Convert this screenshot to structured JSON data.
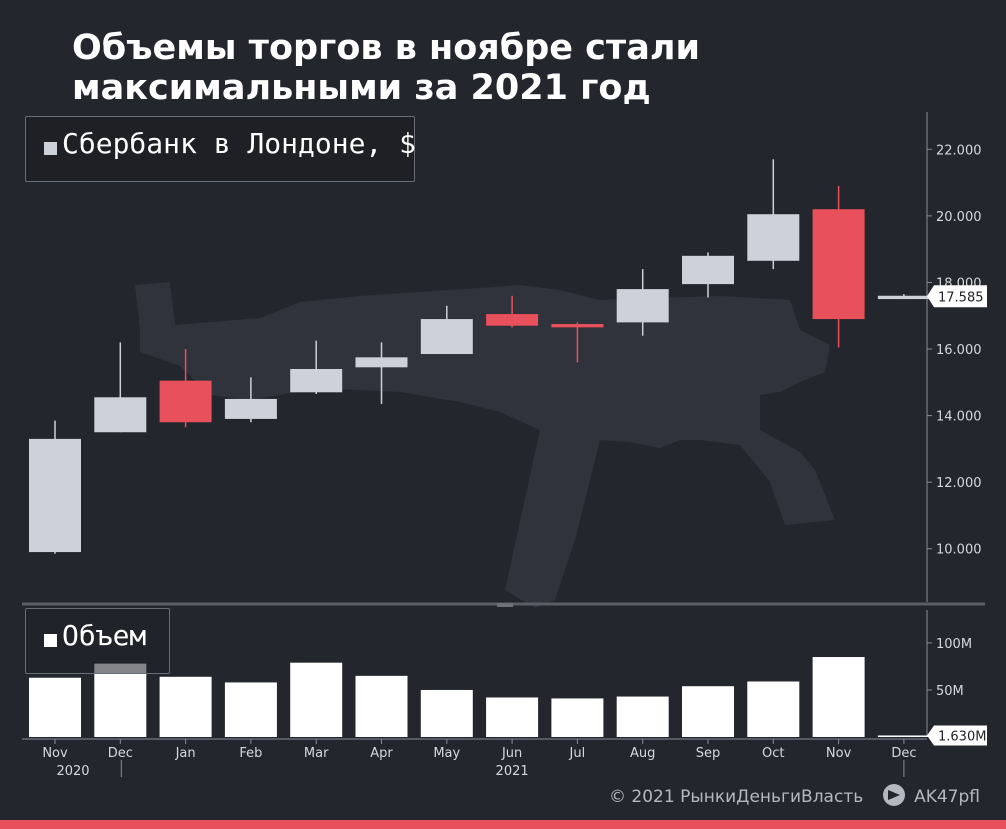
{
  "title": "Объемы торгов в ноябре стали максимальными за 2021 год",
  "legend_price": "Сбербанк в Лондоне, $",
  "legend_volume": "Объем",
  "footer": {
    "copyright": "© 2021  РынкиДеньгиВласть",
    "telegram": "AK47pfl"
  },
  "colors": {
    "up": "#cdd1da",
    "down": "#e8505b",
    "volume": "#ffffff",
    "background": "#24262e",
    "accent_bar": "#e8505b"
  },
  "chart_data": {
    "type": "candlestick",
    "categories": [
      "Nov",
      "Dec",
      "Jan",
      "Feb",
      "Mar",
      "Apr",
      "May",
      "Jun",
      "Jul",
      "Aug",
      "Sep",
      "Oct",
      "Nov",
      "Dec"
    ],
    "year_labels": {
      "0": "2020",
      "7": "2021"
    },
    "price": {
      "name": "Сбербанк в Лондоне, $",
      "ylim": [
        8.4,
        23.0
      ],
      "ticks": [
        10,
        12,
        14,
        16,
        18,
        20,
        22
      ],
      "tick_labels": [
        "10.000",
        "12.000",
        "14.000",
        "16.000",
        "18.000",
        "20.000",
        "22.000"
      ],
      "last_label": "17.585",
      "last_value": 17.585,
      "candles": [
        {
          "open": 9.9,
          "close": 13.3,
          "high": 13.85,
          "low": 9.85
        },
        {
          "open": 13.5,
          "close": 14.55,
          "high": 16.2,
          "low": 13.5
        },
        {
          "open": 15.05,
          "close": 13.8,
          "high": 16.0,
          "low": 13.65
        },
        {
          "open": 13.9,
          "close": 14.5,
          "high": 15.15,
          "low": 13.8
        },
        {
          "open": 14.7,
          "close": 15.4,
          "high": 16.25,
          "low": 14.65
        },
        {
          "open": 15.45,
          "close": 15.75,
          "high": 16.2,
          "low": 14.35
        },
        {
          "open": 15.85,
          "close": 16.9,
          "high": 17.3,
          "low": 15.85
        },
        {
          "open": 17.05,
          "close": 16.7,
          "high": 17.6,
          "low": 16.65
        },
        {
          "open": 16.75,
          "close": 16.65,
          "high": 16.8,
          "low": 15.6
        },
        {
          "open": 16.8,
          "close": 17.8,
          "high": 18.4,
          "low": 16.4
        },
        {
          "open": 17.95,
          "close": 18.8,
          "high": 18.9,
          "low": 17.55
        },
        {
          "open": 18.65,
          "close": 20.05,
          "high": 21.7,
          "low": 18.4
        },
        {
          "open": 20.2,
          "close": 16.9,
          "high": 20.9,
          "low": 16.05
        },
        {
          "open": 17.5,
          "close": 17.6,
          "high": 17.65,
          "low": 17.5
        }
      ]
    },
    "volume": {
      "name": "Объем",
      "ylim": [
        0,
        135
      ],
      "ticks": [
        50,
        100
      ],
      "tick_labels": [
        "50M",
        "100M"
      ],
      "last_label": "1.630M",
      "values": [
        63,
        78,
        64,
        58,
        79,
        65,
        50,
        42,
        41,
        43,
        54,
        59,
        85,
        1.63
      ]
    }
  }
}
